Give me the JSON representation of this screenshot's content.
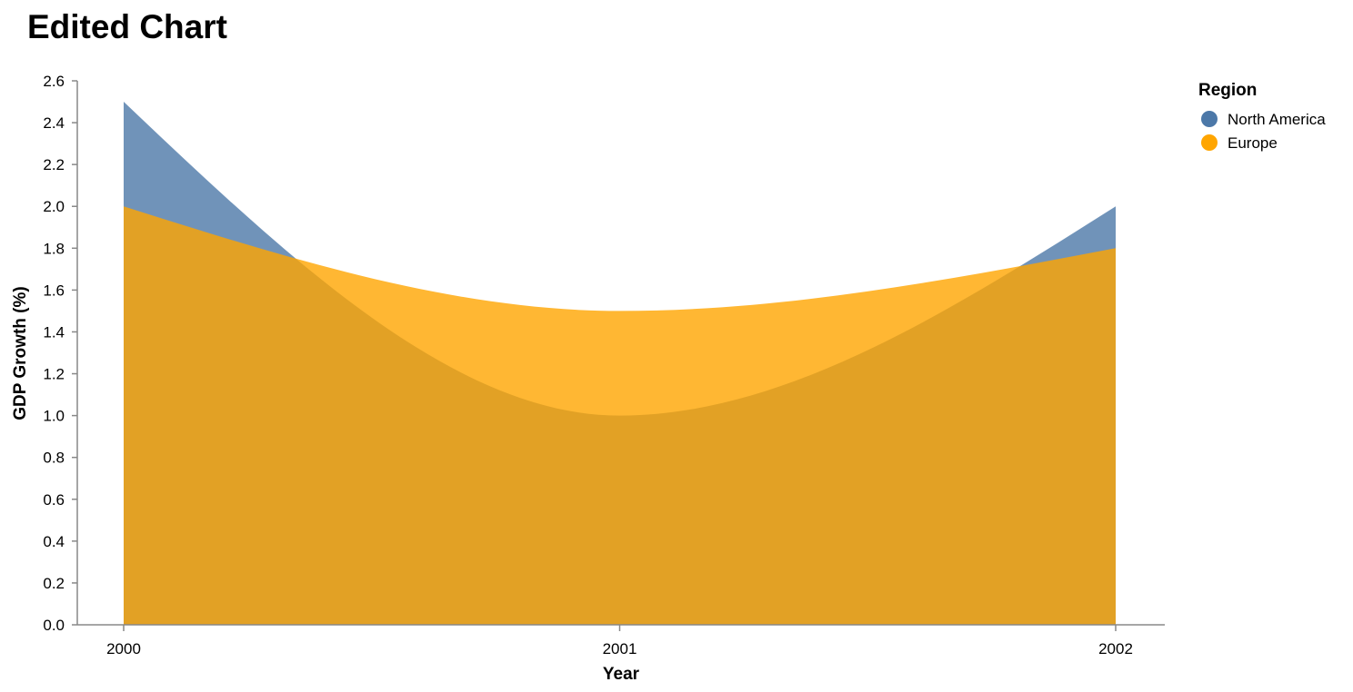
{
  "chart_data": {
    "type": "area",
    "title": "Edited Chart",
    "xlabel": "Year",
    "ylabel": "GDP Growth (%)",
    "x": [
      "2000",
      "2001",
      "2002"
    ],
    "ylim": [
      0,
      2.6
    ],
    "y_ticks": [
      "0.0",
      "0.2",
      "0.4",
      "0.6",
      "0.8",
      "1.0",
      "1.2",
      "1.4",
      "1.6",
      "1.8",
      "2.0",
      "2.2",
      "2.4",
      "2.6"
    ],
    "grid": false,
    "interpolation": "monotone",
    "legend": {
      "title": "Region",
      "placement": "right"
    },
    "series": [
      {
        "name": "North America",
        "values": [
          2.5,
          1.0,
          2.0
        ],
        "color": "#4c78a8"
      },
      {
        "name": "Europe",
        "values": [
          2.0,
          1.5,
          1.8
        ],
        "color": "#ffa500"
      }
    ]
  }
}
